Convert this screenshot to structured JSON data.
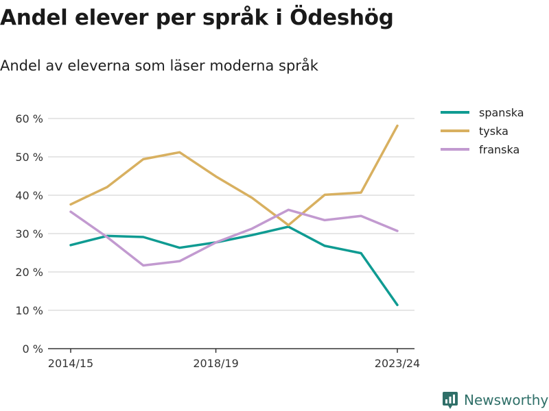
{
  "title": "Andel elever per språk i Ödeshög",
  "subtitle": "Andel av eleverna som läser moderna språk",
  "brand": "Newsworthy",
  "chart_data": {
    "type": "line",
    "x": [
      "2014/15",
      "2015/16",
      "2016/17",
      "2017/18",
      "2018/19",
      "2019/20",
      "2020/21",
      "2021/22",
      "2022/23",
      "2023/24"
    ],
    "x_tick_labels": [
      "2014/15",
      "2018/19",
      "2023/24"
    ],
    "y_ticks": [
      0,
      10,
      20,
      30,
      40,
      50,
      60
    ],
    "y_tick_labels": [
      "0 %",
      "10 %",
      "20 %",
      "30 %",
      "40 %",
      "50 %",
      "60 %"
    ],
    "ylim": [
      0,
      60
    ],
    "grid": true,
    "legend_position": "top-right",
    "series": [
      {
        "name": "spanska",
        "color": "#0f9b92",
        "values": [
          27.0,
          29.4,
          29.1,
          26.3,
          27.7,
          29.6,
          31.8,
          26.8,
          24.9,
          11.4
        ]
      },
      {
        "name": "tyska",
        "color": "#d8b060",
        "values": [
          37.6,
          42.1,
          49.4,
          51.2,
          44.9,
          39.3,
          32.2,
          40.1,
          40.7,
          58.1
        ]
      },
      {
        "name": "franska",
        "color": "#c29ad0",
        "values": [
          35.7,
          29.1,
          21.7,
          22.8,
          27.7,
          31.3,
          36.2,
          33.5,
          34.6,
          30.7
        ]
      }
    ]
  }
}
